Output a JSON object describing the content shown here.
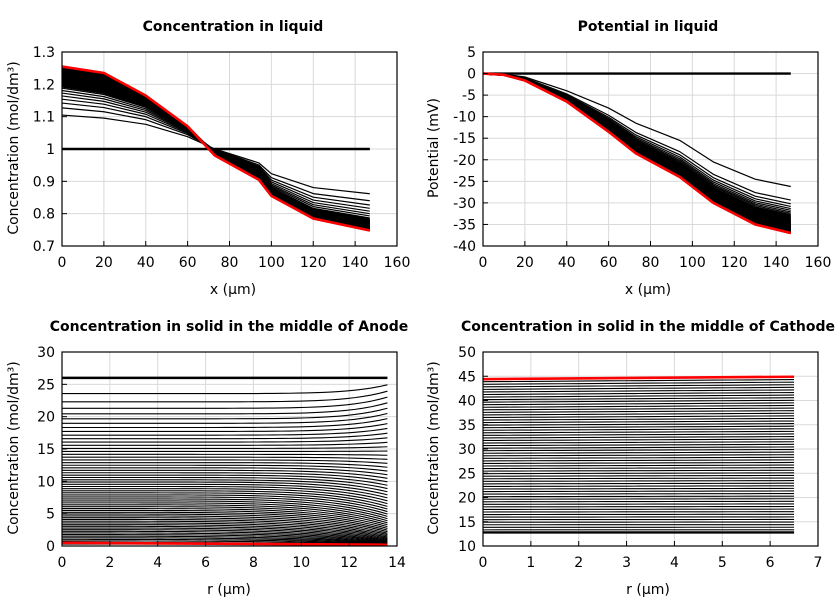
{
  "chart_data": [
    {
      "type": "line",
      "title": "Concentration in liquid",
      "xlabel": "x (µm)",
      "ylabel": "Concentration (mol/dm³)",
      "xlim": [
        0,
        160
      ],
      "ylim": [
        0.7,
        1.3
      ],
      "xticks": [
        0,
        20,
        40,
        60,
        80,
        100,
        120,
        140,
        160
      ],
      "yticks": [
        0.7,
        0.8,
        0.9,
        1,
        1.1,
        1.2,
        1.3
      ],
      "ytick_labels": [
        "0.7",
        "0.8",
        "0.9",
        "1",
        "1.1",
        "1.2",
        "1.3"
      ],
      "grid": true,
      "curves_count": 60,
      "series": [
        {
          "x": [
            0,
            20,
            40,
            60,
            73,
            94,
            100,
            120,
            147
          ],
          "y": [
            1.0,
            1.0,
            1.0,
            1.0,
            1.0,
            1.0,
            1.0,
            1.0,
            1.0
          ],
          "color": "#000000"
        },
        {
          "x": [
            0,
            20,
            40,
            60,
            73,
            94,
            100,
            120,
            147
          ],
          "y": [
            1.11,
            1.1,
            1.08,
            1.04,
            1.0,
            0.955,
            0.92,
            0.875,
            0.855
          ],
          "color": "#000000"
        },
        {
          "x": [
            0,
            20,
            40,
            60,
            73,
            94,
            100,
            120,
            147
          ],
          "y": [
            1.19,
            1.17,
            1.13,
            1.06,
            0.995,
            0.935,
            0.88,
            0.815,
            0.785
          ],
          "color": "#000000"
        },
        {
          "x": [
            0,
            20,
            40,
            60,
            73,
            94,
            100,
            120,
            147
          ],
          "y": [
            1.22,
            1.2,
            1.15,
            1.065,
            0.99,
            0.925,
            0.87,
            0.8,
            0.765
          ],
          "color": "#000000"
        },
        {
          "x": [
            0,
            20,
            40,
            60,
            73,
            94,
            100,
            120,
            147
          ],
          "y": [
            1.255,
            1.235,
            1.165,
            1.07,
            0.98,
            0.905,
            0.855,
            0.785,
            0.748
          ],
          "color": "#ff0000"
        }
      ]
    },
    {
      "type": "line",
      "title": "Potential in liquid",
      "xlabel": "x (µm)",
      "ylabel": "Potential (mV)",
      "xlim": [
        0,
        160
      ],
      "ylim": [
        -40,
        5
      ],
      "xticks": [
        0,
        20,
        40,
        60,
        80,
        100,
        120,
        140,
        160
      ],
      "yticks": [
        -40,
        -35,
        -30,
        -25,
        -20,
        -15,
        -10,
        -5,
        0,
        5
      ],
      "ytick_labels": [
        "-40",
        "-35",
        "-30",
        "-25",
        "-20",
        "-15",
        "-10",
        "-5",
        "0",
        "5"
      ],
      "grid": true,
      "curves_count": 60,
      "series": [
        {
          "x": [
            0,
            147
          ],
          "y": [
            0,
            0
          ],
          "color": "#000000"
        },
        {
          "x": [
            0,
            10,
            20,
            40,
            60,
            73,
            94,
            110,
            130,
            147
          ],
          "y": [
            0,
            -0.1,
            -0.8,
            -4,
            -8,
            -11.5,
            -15.5,
            -20.5,
            -24.5,
            -26.2
          ],
          "color": "#000000"
        },
        {
          "x": [
            0,
            10,
            20,
            40,
            60,
            73,
            94,
            110,
            130,
            147
          ],
          "y": [
            0,
            -0.2,
            -1.2,
            -5.5,
            -11.5,
            -16,
            -21,
            -26.5,
            -31,
            -32.8
          ],
          "color": "#000000"
        },
        {
          "x": [
            0,
            10,
            20,
            40,
            60,
            73,
            94,
            110,
            130,
            147
          ],
          "y": [
            0,
            -0.3,
            -1.6,
            -6.5,
            -13.5,
            -18.5,
            -24,
            -30,
            -35,
            -37
          ],
          "color": "#ff0000"
        }
      ]
    },
    {
      "type": "line",
      "title": "Concentration in solid in the middle of Anode",
      "xlabel": "r (µm)",
      "ylabel": "Concentration (mol/dm³)",
      "xlim": [
        0,
        14
      ],
      "ylim": [
        0,
        30
      ],
      "xticks": [
        0,
        2,
        4,
        6,
        8,
        10,
        12,
        14
      ],
      "yticks": [
        0,
        5,
        10,
        15,
        20,
        25,
        30
      ],
      "ytick_labels": [
        "0",
        "5",
        "10",
        "15",
        "20",
        "25",
        "30"
      ],
      "grid": true,
      "curves_count": 60,
      "series": [
        {
          "x": [
            0,
            13.6
          ],
          "y": [
            26,
            26
          ],
          "color": "#000000"
        },
        {
          "x": [
            0,
            13.6
          ],
          "y": [
            0.5,
            0.2
          ],
          "color": "#ff0000"
        }
      ]
    },
    {
      "type": "line",
      "title": "Concentration in solid in the middle of Cathode",
      "xlabel": "r (µm)",
      "ylabel": "Concentration (mol/dm³)",
      "xlim": [
        0,
        7
      ],
      "ylim": [
        10,
        50
      ],
      "xticks": [
        0,
        1,
        2,
        3,
        4,
        5,
        6,
        7
      ],
      "yticks": [
        10,
        15,
        20,
        25,
        30,
        35,
        40,
        45,
        50
      ],
      "ytick_labels": [
        "10",
        "15",
        "20",
        "25",
        "30",
        "35",
        "40",
        "45",
        "50"
      ],
      "grid": true,
      "curves_count": 60,
      "series": [
        {
          "x": [
            0,
            6.5
          ],
          "y": [
            12.8,
            12.8
          ],
          "color": "#000000"
        },
        {
          "x": [
            0,
            6.5
          ],
          "y": [
            44.4,
            44.9
          ],
          "color": "#ff0000"
        }
      ]
    }
  ]
}
